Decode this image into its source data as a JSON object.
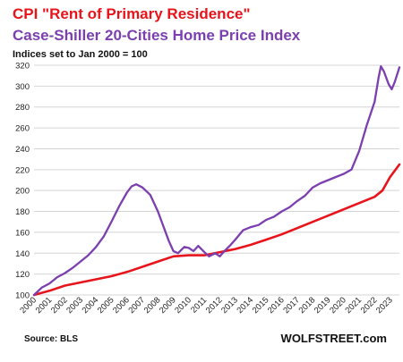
{
  "chart_data": {
    "type": "line",
    "title": "CPI \"Rent of Primary Residence\"",
    "subtitle": "Case-Shiller 20-Cities Home Price Index",
    "note": "Indices set to Jan 2000 = 100",
    "xlabel": "",
    "ylabel": "",
    "ylim": [
      100,
      320
    ],
    "xlim": [
      2000,
      2023.6
    ],
    "yticks": [
      100,
      120,
      140,
      160,
      180,
      200,
      220,
      240,
      260,
      280,
      300,
      320
    ],
    "xticks": [
      "2000",
      "2001",
      "2002",
      "2003",
      "2004",
      "2005",
      "2006",
      "2007",
      "2008",
      "2009",
      "2010",
      "2011",
      "2012",
      "2013",
      "2014",
      "2015",
      "2016",
      "2017",
      "2018",
      "2019",
      "2020",
      "2021",
      "2022",
      "2023"
    ],
    "grid": true,
    "legend": "none",
    "series": [
      {
        "name": "CPI \"Rent of Primary Residence\"",
        "color": "#e8141b",
        "points": [
          [
            2000,
            100
          ],
          [
            2001,
            104
          ],
          [
            2002,
            109
          ],
          [
            2003,
            112
          ],
          [
            2004,
            115
          ],
          [
            2005,
            118
          ],
          [
            2006,
            122
          ],
          [
            2007,
            127
          ],
          [
            2008,
            132
          ],
          [
            2009,
            137
          ],
          [
            2010,
            138
          ],
          [
            2011,
            138
          ],
          [
            2012,
            141
          ],
          [
            2013,
            144
          ],
          [
            2014,
            148
          ],
          [
            2015,
            153
          ],
          [
            2016,
            158
          ],
          [
            2017,
            164
          ],
          [
            2018,
            170
          ],
          [
            2019,
            176
          ],
          [
            2020,
            182
          ],
          [
            2021,
            188
          ],
          [
            2022,
            194
          ],
          [
            2022.5,
            200
          ],
          [
            2023,
            213
          ],
          [
            2023.6,
            225
          ]
        ]
      },
      {
        "name": "Case-Shiller 20-Cities Home Price Index",
        "color": "#7b3fb0",
        "points": [
          [
            2000,
            100
          ],
          [
            2000.5,
            107
          ],
          [
            2001,
            111
          ],
          [
            2001.5,
            117
          ],
          [
            2002,
            121
          ],
          [
            2002.5,
            126
          ],
          [
            2003,
            132
          ],
          [
            2003.5,
            138
          ],
          [
            2004,
            146
          ],
          [
            2004.5,
            156
          ],
          [
            2005,
            170
          ],
          [
            2005.5,
            185
          ],
          [
            2006,
            198
          ],
          [
            2006.3,
            204
          ],
          [
            2006.6,
            206
          ],
          [
            2007,
            203
          ],
          [
            2007.5,
            196
          ],
          [
            2008,
            180
          ],
          [
            2008.3,
            168
          ],
          [
            2008.7,
            152
          ],
          [
            2009,
            142
          ],
          [
            2009.3,
            140
          ],
          [
            2009.7,
            146
          ],
          [
            2010,
            145
          ],
          [
            2010.3,
            142
          ],
          [
            2010.6,
            147
          ],
          [
            2011,
            141
          ],
          [
            2011.3,
            137
          ],
          [
            2011.7,
            140
          ],
          [
            2012,
            137
          ],
          [
            2012.3,
            142
          ],
          [
            2012.7,
            148
          ],
          [
            2013,
            153
          ],
          [
            2013.5,
            162
          ],
          [
            2014,
            165
          ],
          [
            2014.5,
            167
          ],
          [
            2015,
            172
          ],
          [
            2015.5,
            175
          ],
          [
            2016,
            180
          ],
          [
            2016.5,
            184
          ],
          [
            2017,
            190
          ],
          [
            2017.5,
            195
          ],
          [
            2018,
            203
          ],
          [
            2018.5,
            207
          ],
          [
            2019,
            210
          ],
          [
            2019.5,
            213
          ],
          [
            2020,
            216
          ],
          [
            2020.5,
            220
          ],
          [
            2021,
            238
          ],
          [
            2021.5,
            263
          ],
          [
            2022,
            285
          ],
          [
            2022.25,
            308
          ],
          [
            2022.4,
            319
          ],
          [
            2022.6,
            314
          ],
          [
            2022.9,
            302
          ],
          [
            2023.1,
            297
          ],
          [
            2023.3,
            304
          ],
          [
            2023.6,
            318
          ]
        ]
      }
    ],
    "source": "Source: BLS",
    "brand": "WOLFSTREET.com"
  }
}
